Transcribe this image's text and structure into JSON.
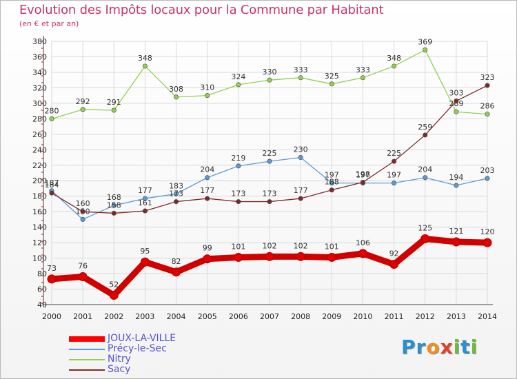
{
  "chart_data": {
    "type": "line",
    "title": "Evolution des Impôts locaux pour la Commune par Habitant",
    "subtitle": "(en € et par an)",
    "x": [
      "2000",
      "2001",
      "2002",
      "2003",
      "2004",
      "2005",
      "2006",
      "2007",
      "2008",
      "2009",
      "2010",
      "2011",
      "2012",
      "2013",
      "2014"
    ],
    "ylim": [
      40,
      380
    ],
    "yticks": [
      40,
      60,
      80,
      100,
      120,
      140,
      160,
      180,
      200,
      220,
      240,
      260,
      280,
      300,
      320,
      340,
      360,
      380
    ],
    "grid": true,
    "legend_position": "bottom-left",
    "series": [
      {
        "name": "JOUX-LA-VILLE",
        "color": "#ff0000",
        "values": [
          73,
          76,
          52,
          95,
          82,
          99,
          101,
          102,
          102,
          101,
          106,
          92,
          125,
          121,
          120
        ]
      },
      {
        "name": "Précy-le-Sec",
        "color": "#5b9bd5",
        "values": [
          187,
          150,
          168,
          177,
          183,
          204,
          219,
          225,
          230,
          197,
          197,
          197,
          204,
          194,
          203
        ]
      },
      {
        "name": "Nitry",
        "color": "#92d050",
        "values": [
          280,
          292,
          291,
          348,
          308,
          310,
          324,
          330,
          333,
          325,
          333,
          348,
          369,
          289,
          286
        ]
      },
      {
        "name": "Sacy",
        "color": "#7f2a2a",
        "values": [
          184,
          160,
          158,
          161,
          173,
          177,
          173,
          173,
          177,
          188,
          198,
          225,
          259,
          303,
          323
        ]
      }
    ]
  },
  "brand": {
    "p": "Pr",
    "o": "o",
    "x": "x",
    "i": "i",
    "t": "t",
    "i2": "i"
  }
}
